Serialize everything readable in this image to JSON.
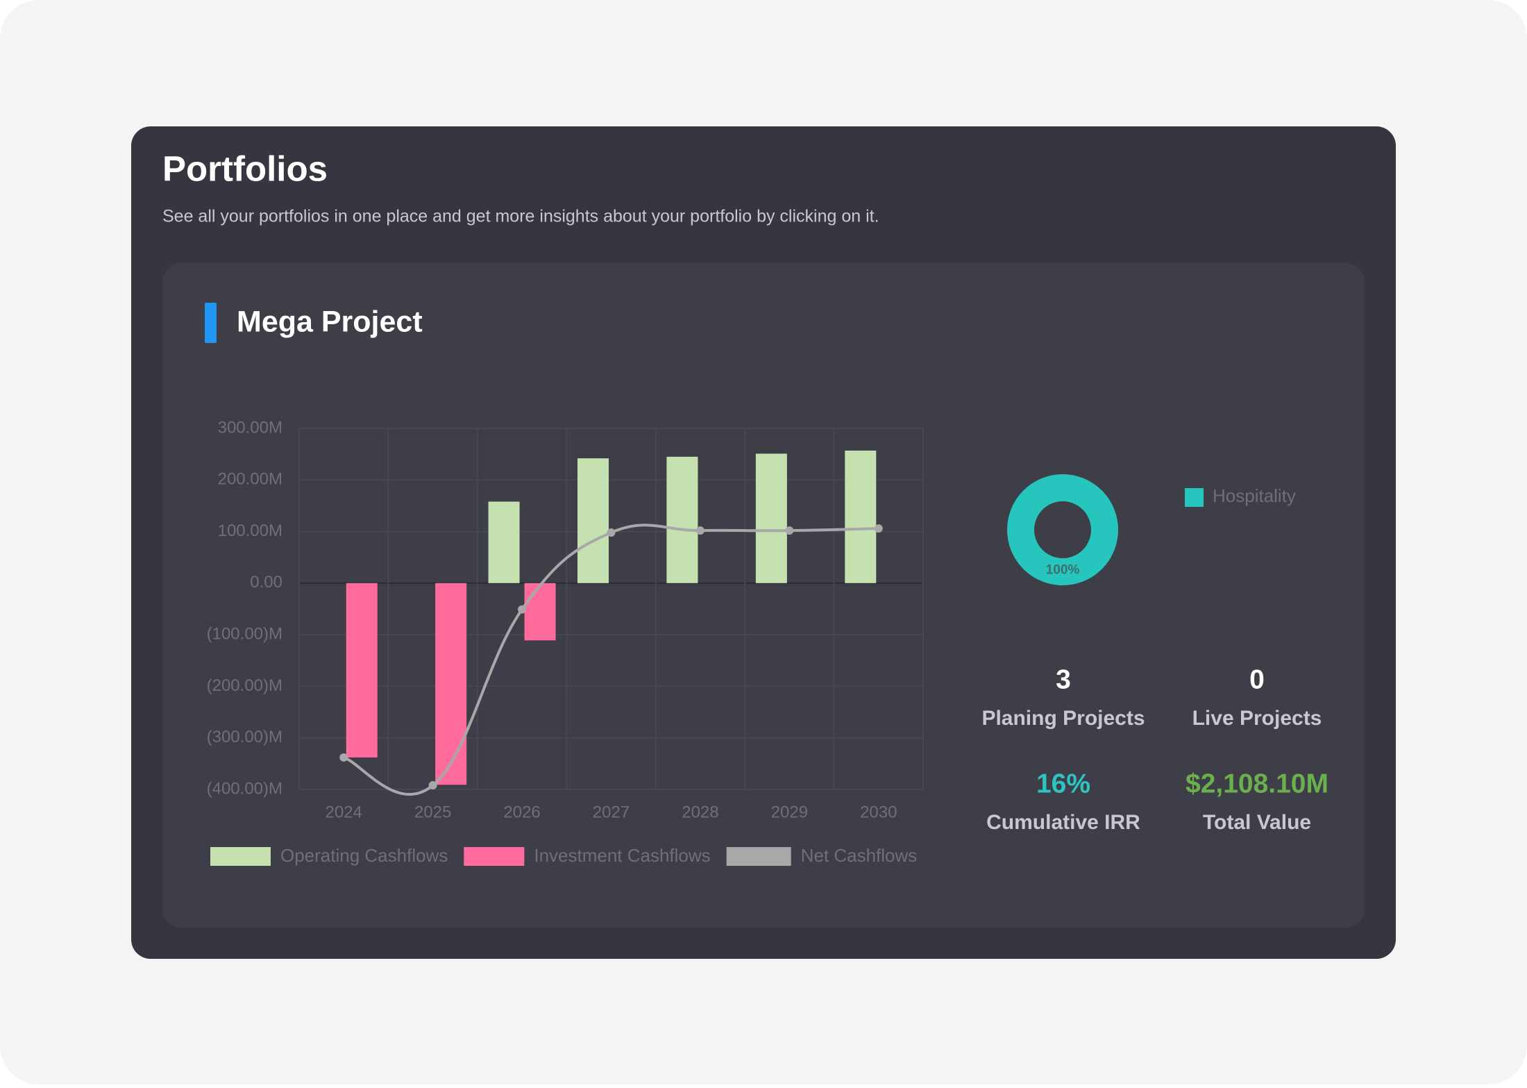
{
  "header": {
    "title": "Portfolios",
    "subtitle": "See all your portfolios in one place and get more insights about your portfolio by clicking on it."
  },
  "card": {
    "title": "Mega Project"
  },
  "chart_data": [
    {
      "type": "bar",
      "categories": [
        "2024",
        "2025",
        "2026",
        "2027",
        "2028",
        "2029",
        "2030"
      ],
      "series": [
        {
          "name": "Operating Cashflows",
          "color": "#c5e1b0",
          "values": [
            null,
            null,
            158,
            242,
            245,
            251,
            257
          ]
        },
        {
          "name": "Investment Cashflows",
          "color": "#ff6b9d",
          "values": [
            -338,
            -391,
            -111,
            null,
            null,
            null,
            null
          ]
        },
        {
          "name": "Net Cashflows",
          "color": "#a8a8a8",
          "type": "line",
          "values": [
            -338,
            -392,
            -51,
            98,
            102,
            102,
            106
          ]
        }
      ],
      "ylim": [
        -400,
        300
      ],
      "yticks": [
        {
          "value": -400,
          "label": "(400.00)M"
        },
        {
          "value": -300,
          "label": "(300.00)M"
        },
        {
          "value": -200,
          "label": "(200.00)M"
        },
        {
          "value": -100,
          "label": "(100.00)M"
        },
        {
          "value": 0,
          "label": "0.00"
        },
        {
          "value": 100,
          "label": "100.00M"
        },
        {
          "value": 200,
          "label": "200.00M"
        },
        {
          "value": 300,
          "label": "300.00M"
        }
      ],
      "grid": true
    },
    {
      "type": "doughnut",
      "categories": [
        "Hospitality"
      ],
      "values": [
        100
      ],
      "value_labels": [
        "100%"
      ],
      "colors": [
        "#26c6be"
      ]
    }
  ],
  "stats": [
    {
      "value": "3",
      "label": "Planing Projects"
    },
    {
      "value": "0",
      "label": "Live Projects"
    },
    {
      "value": "16%",
      "label": "Cumulative IRR"
    },
    {
      "value": "$2,108.10M",
      "label": "Total Value"
    }
  ]
}
